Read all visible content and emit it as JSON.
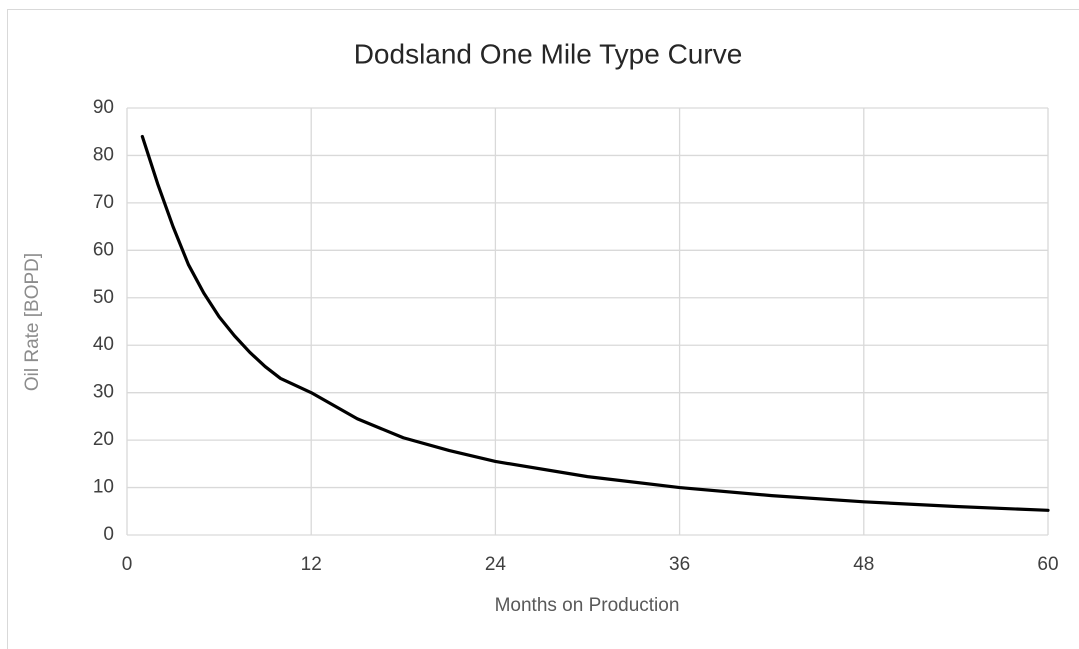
{
  "chart_data": {
    "type": "line",
    "title": "Dodsland One Mile Type Curve",
    "x_label": "Months on Production",
    "y_label": "Oil Rate [BOPD]",
    "x": [
      1,
      2,
      3,
      4,
      5,
      6,
      7,
      8,
      9,
      10,
      12,
      15,
      18,
      21,
      24,
      30,
      36,
      42,
      48,
      54,
      60
    ],
    "values": [
      84,
      74,
      65,
      57,
      51,
      46,
      42,
      38.5,
      35.5,
      33,
      30,
      24.5,
      20.5,
      17.8,
      15.5,
      12.3,
      10,
      8.3,
      7,
      6,
      5.2
    ],
    "color": "#000000",
    "xlim": [
      0,
      60
    ],
    "xticks": [
      0,
      12,
      24,
      36,
      48,
      60
    ],
    "ylim": [
      0,
      90
    ],
    "yticks": [
      0,
      10,
      20,
      30,
      40,
      50,
      60,
      70,
      80,
      90
    ],
    "grid": true
  }
}
